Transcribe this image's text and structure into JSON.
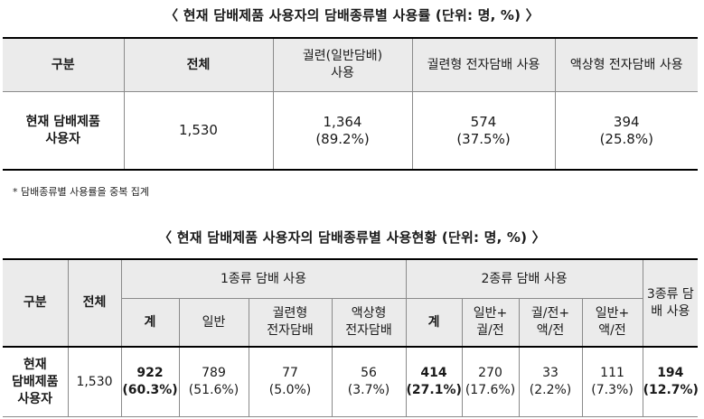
{
  "table1": {
    "title": "〈 현재 담배제품 사용자의 담배종류별 사용률 (단위: 명, %) 〉",
    "headers": [
      "구분",
      "전체",
      "궐련(일반담배)\n사용",
      "궐련형 전자담배 사용",
      "액상형 전자담배 사용"
    ],
    "row_label": "현재 담배제품\n사용자",
    "total": "1,530",
    "cells": [
      {
        "count": "1,364",
        "pct": "(89.2%)"
      },
      {
        "count": "574",
        "pct": "(37.5%)"
      },
      {
        "count": "394",
        "pct": "(25.8%)"
      }
    ],
    "note": "* 담배종류별 사용률을 중복 집계"
  },
  "table2": {
    "title": "〈 현재 담배제품 사용자의 담배종류별 사용현황 (단위: 명, %) 〉",
    "head_gubun": "구분",
    "head_total": "전체",
    "group1": "1종류 담배 사용",
    "group2": "2종류 담배 사용",
    "group3": "3종류 담\n배 사용",
    "sub1": [
      "계",
      "일반",
      "궐련형\n전자담배",
      "액상형\n전자담배"
    ],
    "sub2": [
      "계",
      "일반+\n궐/전",
      "궐/전+\n액/전",
      "일반+\n액/전"
    ],
    "row_label": "현재\n담배제품\n사용자",
    "total": "1,530",
    "cells1": [
      {
        "count": "922",
        "pct": "(60.3%)"
      },
      {
        "count": "789",
        "pct": "(51.6%)"
      },
      {
        "count": "77",
        "pct": "(5.0%)"
      },
      {
        "count": "56",
        "pct": "(3.7%)"
      }
    ],
    "cells2": [
      {
        "count": "414",
        "pct": "(27.1%)"
      },
      {
        "count": "270",
        "pct": "(17.6%)"
      },
      {
        "count": "33",
        "pct": "(2.2%)"
      },
      {
        "count": "111",
        "pct": "(7.3%)"
      }
    ],
    "cell3": {
      "count": "194",
      "pct": "(12.7%)"
    }
  }
}
